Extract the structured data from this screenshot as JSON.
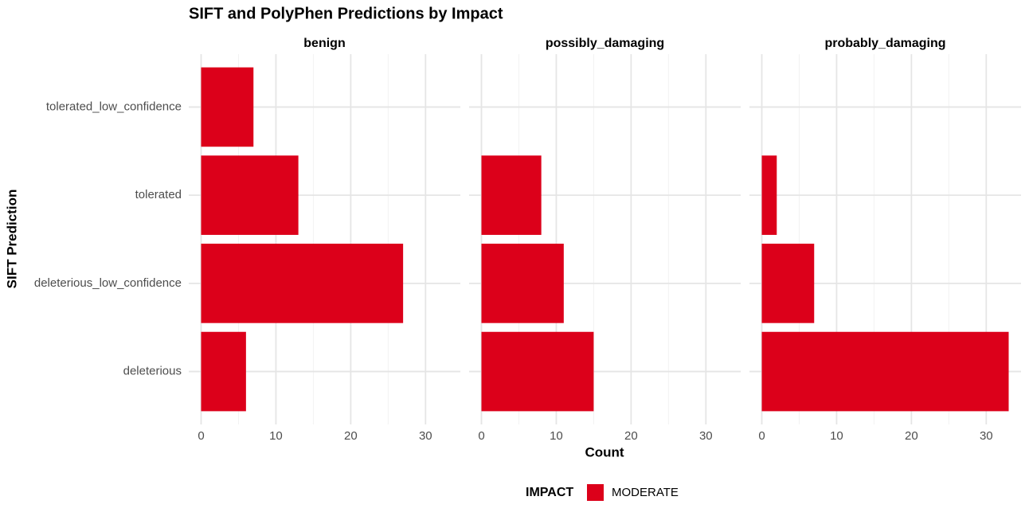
{
  "chart_data": {
    "type": "bar",
    "orientation": "horizontal",
    "title": "SIFT and PolyPhen Predictions by Impact",
    "x_label": "Count",
    "y_label": "SIFT Prediction",
    "legend_title": "IMPACT",
    "facets": [
      "benign",
      "possibly_damaging",
      "probably_damaging"
    ],
    "categories": [
      "deleterious",
      "deleterious_low_confidence",
      "tolerated",
      "tolerated_low_confidence"
    ],
    "series": [
      {
        "name": "MODERATE",
        "color": "#dc001a",
        "values": [
          [
            6,
            27,
            13,
            7
          ],
          [
            15,
            11,
            8,
            null
          ],
          [
            33,
            7,
            2,
            null
          ]
        ]
      }
    ],
    "xlim": [
      -1.65,
      34.65
    ],
    "xticks": [
      0,
      10,
      20,
      30
    ],
    "xminor": [
      5,
      15,
      25
    ],
    "grid": true,
    "legend_position": "bottom"
  }
}
